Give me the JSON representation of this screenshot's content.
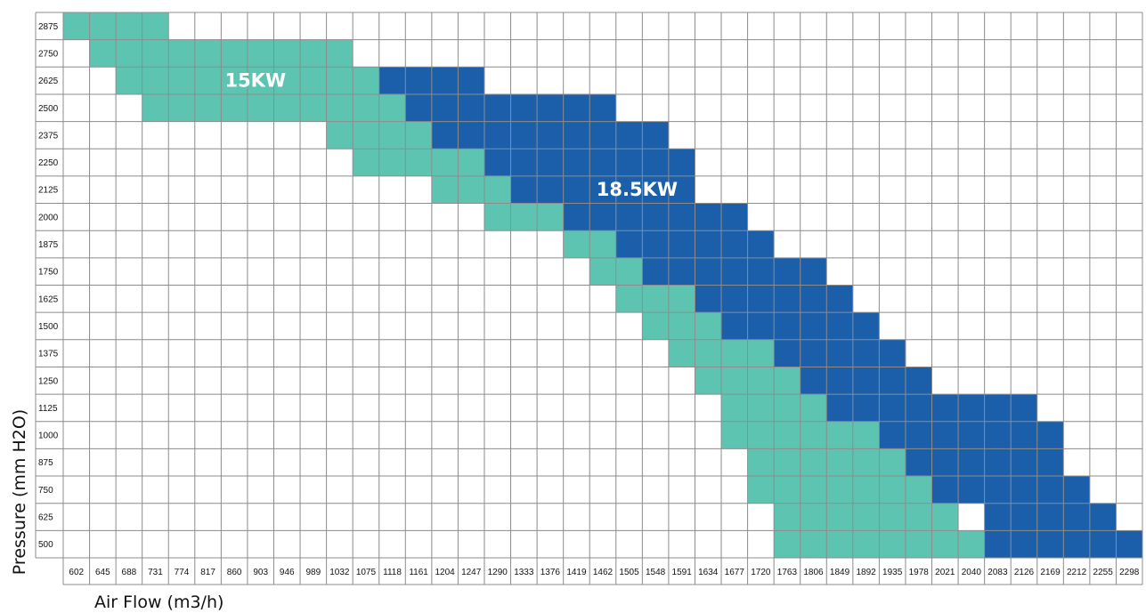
{
  "chart_data": {
    "type": "heatmap",
    "xlabel": "Air Flow (m3/h)",
    "ylabel": "Pressure (mm H2O)",
    "x_categories": [
      "602",
      "645",
      "688",
      "731",
      "774",
      "817",
      "860",
      "903",
      "946",
      "989",
      "1032",
      "1075",
      "1118",
      "1161",
      "1204",
      "1247",
      "1290",
      "1333",
      "1376",
      "1419",
      "1462",
      "1505",
      "1548",
      "1591",
      "1634",
      "1677",
      "1720",
      "1763",
      "1806",
      "1849",
      "1892",
      "1935",
      "1978",
      "2021",
      "2040",
      "2083",
      "2126",
      "2169",
      "2212",
      "2255",
      "2298"
    ],
    "y_categories": [
      "2875",
      "2750",
      "2625",
      "2500",
      "2375",
      "2250",
      "2125",
      "2000",
      "1875",
      "1750",
      "1625",
      "1500",
      "1375",
      "1250",
      "1125",
      "1000",
      "875",
      "750",
      "625",
      "500"
    ],
    "colors": {
      "15KW": "#5ec4b2",
      "18.5KW": "#1b5faa",
      "grid": "#8c8c8c",
      "background": "#ffffff"
    },
    "annotations": [
      {
        "text": "15KW",
        "series": "15KW"
      },
      {
        "text": "18.5KW",
        "series": "18.5KW"
      }
    ],
    "series": [
      {
        "name": "15KW",
        "ranges": [
          {
            "pressure": "2875",
            "from": "602",
            "to": "731"
          },
          {
            "pressure": "2750",
            "from": "645",
            "to": "1032"
          },
          {
            "pressure": "2625",
            "from": "688",
            "to": "1075"
          },
          {
            "pressure": "2500",
            "from": "731",
            "to": "1118"
          },
          {
            "pressure": "2375",
            "from": "1032",
            "to": "1161"
          },
          {
            "pressure": "2250",
            "from": "1075",
            "to": "1247"
          },
          {
            "pressure": "2125",
            "from": "1204",
            "to": "1290"
          },
          {
            "pressure": "2000",
            "from": "1290",
            "to": "1376"
          },
          {
            "pressure": "1875",
            "from": "1419",
            "to": "1462"
          },
          {
            "pressure": "1750",
            "from": "1462",
            "to": "1505"
          },
          {
            "pressure": "1625",
            "from": "1505",
            "to": "1591"
          },
          {
            "pressure": "1500",
            "from": "1548",
            "to": "1634"
          },
          {
            "pressure": "1375",
            "from": "1591",
            "to": "1720"
          },
          {
            "pressure": "1250",
            "from": "1634",
            "to": "1763"
          },
          {
            "pressure": "1125",
            "from": "1677",
            "to": "1806"
          },
          {
            "pressure": "1000",
            "from": "1677",
            "to": "1892"
          },
          {
            "pressure": "875",
            "from": "1720",
            "to": "1935"
          },
          {
            "pressure": "750",
            "from": "1720",
            "to": "1978"
          },
          {
            "pressure": "625",
            "from": "1763",
            "to": "2021"
          },
          {
            "pressure": "500",
            "from": "1763",
            "to": "2040"
          }
        ]
      },
      {
        "name": "18.5KW",
        "ranges": [
          {
            "pressure": "2625",
            "from": "1118",
            "to": "1247"
          },
          {
            "pressure": "2500",
            "from": "1161",
            "to": "1462"
          },
          {
            "pressure": "2375",
            "from": "1204",
            "to": "1548"
          },
          {
            "pressure": "2250",
            "from": "1290",
            "to": "1591"
          },
          {
            "pressure": "2125",
            "from": "1333",
            "to": "1591"
          },
          {
            "pressure": "2000",
            "from": "1419",
            "to": "1677"
          },
          {
            "pressure": "1875",
            "from": "1505",
            "to": "1720"
          },
          {
            "pressure": "1750",
            "from": "1548",
            "to": "1806"
          },
          {
            "pressure": "1625",
            "from": "1634",
            "to": "1849"
          },
          {
            "pressure": "1500",
            "from": "1677",
            "to": "1892"
          },
          {
            "pressure": "1375",
            "from": "1763",
            "to": "1935"
          },
          {
            "pressure": "1250",
            "from": "1806",
            "to": "1978"
          },
          {
            "pressure": "1125",
            "from": "1849",
            "to": "2126"
          },
          {
            "pressure": "1000",
            "from": "1935",
            "to": "2169"
          },
          {
            "pressure": "875",
            "from": "1978",
            "to": "2169"
          },
          {
            "pressure": "750",
            "from": "2021",
            "to": "2212"
          },
          {
            "pressure": "625",
            "from": "2083",
            "to": "2255"
          },
          {
            "pressure": "500",
            "from": "2083",
            "to": "2298"
          }
        ]
      }
    ]
  }
}
